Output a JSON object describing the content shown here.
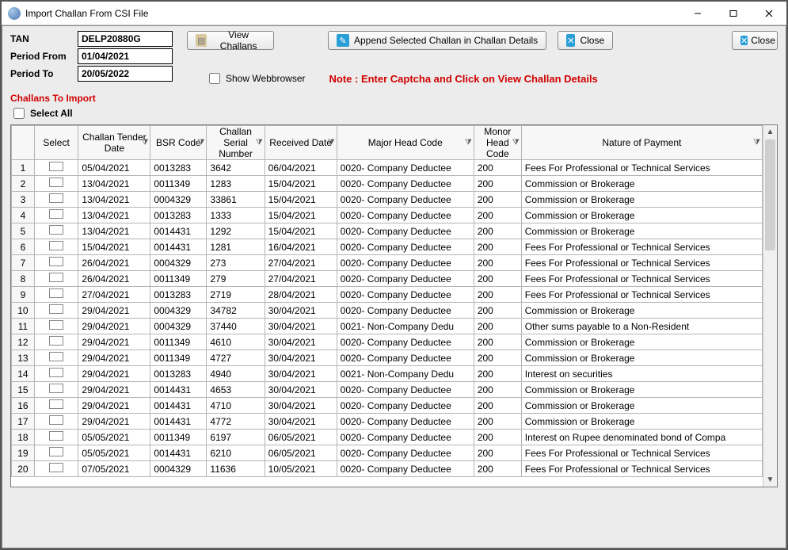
{
  "window": {
    "title": "Import Challan From CSI File"
  },
  "form": {
    "tan_label": "TAN",
    "tan_value": "DELP20880G",
    "period_from_label": "Period From",
    "period_from_value": "01/04/2021",
    "period_to_label": "Period To",
    "period_to_value": "20/05/2022"
  },
  "buttons": {
    "view_challans": "View Challans",
    "append": "Append  Selected Challan in Challan Details",
    "close1": "Close",
    "close2": "Close"
  },
  "checkboxes": {
    "show_webbrowser": "Show Webbrowser",
    "select_all": "Select All"
  },
  "note_text": "Note : Enter Captcha and Click on View Challan Details",
  "section_label": "Challans To Import",
  "columns": {
    "select": "Select",
    "tender": "Challan Tender Date",
    "bsr": "BSR Code",
    "csn": "Challan Serial Number",
    "received": "Received Date",
    "major": "Major Head Code",
    "minor": "Monor Head Code",
    "nature": "Nature of Payment"
  },
  "rows": [
    {
      "n": "1",
      "tender": "05/04/2021",
      "bsr": "0013283",
      "csn": "3642",
      "recv": "06/04/2021",
      "major": "0020- Company Deductee",
      "minor": "200",
      "nature": "Fees For Professional or Technical Services"
    },
    {
      "n": "2",
      "tender": "13/04/2021",
      "bsr": "0011349",
      "csn": "1283",
      "recv": "15/04/2021",
      "major": "0020- Company Deductee",
      "minor": "200",
      "nature": "Commission or Brokerage"
    },
    {
      "n": "3",
      "tender": "13/04/2021",
      "bsr": "0004329",
      "csn": "33861",
      "recv": "15/04/2021",
      "major": "0020- Company Deductee",
      "minor": "200",
      "nature": "Commission or Brokerage"
    },
    {
      "n": "4",
      "tender": "13/04/2021",
      "bsr": "0013283",
      "csn": "1333",
      "recv": "15/04/2021",
      "major": "0020- Company Deductee",
      "minor": "200",
      "nature": "Commission or Brokerage"
    },
    {
      "n": "5",
      "tender": "13/04/2021",
      "bsr": "0014431",
      "csn": "1292",
      "recv": "15/04/2021",
      "major": "0020- Company Deductee",
      "minor": "200",
      "nature": "Commission or Brokerage"
    },
    {
      "n": "6",
      "tender": "15/04/2021",
      "bsr": "0014431",
      "csn": "1281",
      "recv": "16/04/2021",
      "major": "0020- Company Deductee",
      "minor": "200",
      "nature": "Fees For Professional or Technical Services"
    },
    {
      "n": "7",
      "tender": "26/04/2021",
      "bsr": "0004329",
      "csn": "273",
      "recv": "27/04/2021",
      "major": "0020- Company Deductee",
      "minor": "200",
      "nature": "Fees For Professional or Technical Services"
    },
    {
      "n": "8",
      "tender": "26/04/2021",
      "bsr": "0011349",
      "csn": "279",
      "recv": "27/04/2021",
      "major": "0020- Company Deductee",
      "minor": "200",
      "nature": "Fees For Professional or Technical Services"
    },
    {
      "n": "9",
      "tender": "27/04/2021",
      "bsr": "0013283",
      "csn": "2719",
      "recv": "28/04/2021",
      "major": "0020- Company Deductee",
      "minor": "200",
      "nature": "Fees For Professional or Technical Services"
    },
    {
      "n": "10",
      "tender": "29/04/2021",
      "bsr": "0004329",
      "csn": "34782",
      "recv": "30/04/2021",
      "major": "0020- Company Deductee",
      "minor": "200",
      "nature": "Commission or Brokerage"
    },
    {
      "n": "11",
      "tender": "29/04/2021",
      "bsr": "0004329",
      "csn": "37440",
      "recv": "30/04/2021",
      "major": "0021- Non-Company Dedu",
      "minor": "200",
      "nature": "Other sums payable to a Non-Resident"
    },
    {
      "n": "12",
      "tender": "29/04/2021",
      "bsr": "0011349",
      "csn": "4610",
      "recv": "30/04/2021",
      "major": "0020- Company Deductee",
      "minor": "200",
      "nature": "Commission or Brokerage"
    },
    {
      "n": "13",
      "tender": "29/04/2021",
      "bsr": "0011349",
      "csn": "4727",
      "recv": "30/04/2021",
      "major": "0020- Company Deductee",
      "minor": "200",
      "nature": "Commission or Brokerage"
    },
    {
      "n": "14",
      "tender": "29/04/2021",
      "bsr": "0013283",
      "csn": "4940",
      "recv": "30/04/2021",
      "major": "0021- Non-Company Dedu",
      "minor": "200",
      "nature": "Interest on securities"
    },
    {
      "n": "15",
      "tender": "29/04/2021",
      "bsr": "0014431",
      "csn": "4653",
      "recv": "30/04/2021",
      "major": "0020- Company Deductee",
      "minor": "200",
      "nature": "Commission or Brokerage"
    },
    {
      "n": "16",
      "tender": "29/04/2021",
      "bsr": "0014431",
      "csn": "4710",
      "recv": "30/04/2021",
      "major": "0020- Company Deductee",
      "minor": "200",
      "nature": "Commission or Brokerage"
    },
    {
      "n": "17",
      "tender": "29/04/2021",
      "bsr": "0014431",
      "csn": "4772",
      "recv": "30/04/2021",
      "major": "0020- Company Deductee",
      "minor": "200",
      "nature": "Commission or Brokerage"
    },
    {
      "n": "18",
      "tender": "05/05/2021",
      "bsr": "0011349",
      "csn": "6197",
      "recv": "06/05/2021",
      "major": "0020- Company Deductee",
      "minor": "200",
      "nature": "Interest on Rupee denominated bond of Compa"
    },
    {
      "n": "19",
      "tender": "05/05/2021",
      "bsr": "0014431",
      "csn": "6210",
      "recv": "06/05/2021",
      "major": "0020- Company Deductee",
      "minor": "200",
      "nature": "Fees For Professional or Technical Services"
    },
    {
      "n": "20",
      "tender": "07/05/2021",
      "bsr": "0004329",
      "csn": "11636",
      "recv": "10/05/2021",
      "major": "0020- Company Deductee",
      "minor": "200",
      "nature": "Fees For Professional or Technical Services"
    }
  ]
}
